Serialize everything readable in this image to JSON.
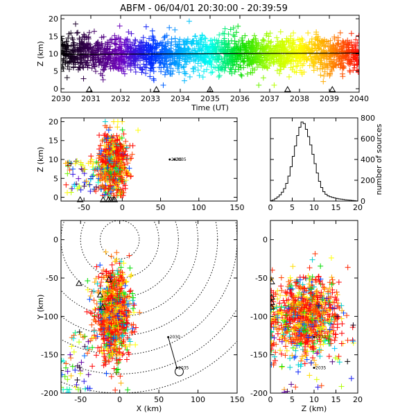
{
  "title": "ABFM - 06/04/01 20:30:00 - 20:39:59",
  "chart_data": [
    {
      "id": "time-height",
      "type": "scatter",
      "xlabel": "Time (UT)",
      "ylabel": "Z (km)",
      "xlim": [
        2030,
        2040
      ],
      "ylim": [
        -1,
        21
      ],
      "xticks": [
        2030,
        2031,
        2032,
        2033,
        2034,
        2035,
        2036,
        2037,
        2038,
        2039,
        2040
      ],
      "yticks": [
        0,
        5,
        10,
        15,
        20
      ],
      "color_scale": "time-rainbow (black → purple → blue → cyan → green → yellow → red)",
      "source_cloud": {
        "x_range": [
          2030,
          2040
        ],
        "z_center": 10,
        "z_spread": 4.5,
        "z_min": 1,
        "z_max": 20
      },
      "trend_line": [
        [
          2030,
          9.8
        ],
        [
          2035,
          10.0
        ],
        [
          2040,
          10.2
        ]
      ],
      "station_markers_x": [
        2030.95,
        2033.2,
        2035.0,
        2037.6,
        2039.1
      ]
    },
    {
      "id": "x-z",
      "type": "scatter",
      "xlabel": "",
      "ylabel": "Z (km)",
      "xlim": [
        -80,
        150
      ],
      "ylim": [
        -1,
        21
      ],
      "xticks": [
        -50,
        0,
        50,
        100,
        150
      ],
      "yticks": [
        0,
        5,
        10,
        15,
        20
      ],
      "source_cloud": {
        "x_center": -12,
        "x_spread": 9,
        "z_center": 9,
        "z_spread": 4
      },
      "annotations": [
        {
          "text": "2030",
          "x": 62,
          "z": 10
        },
        {
          "text": "2035",
          "x": 68,
          "z": 10
        }
      ],
      "station_markers_x": [
        -55,
        -25,
        -18,
        -15,
        -12,
        -10
      ]
    },
    {
      "id": "histogram",
      "type": "bar",
      "xlabel": "",
      "ylabel": "number of sources",
      "xlim": [
        0,
        20
      ],
      "ylim": [
        0,
        800
      ],
      "xticks": [
        0,
        5,
        10,
        15,
        20
      ],
      "yticks": [
        0,
        200,
        400,
        600,
        800
      ],
      "bin_width": 0.5,
      "bin_starts": [
        0,
        0.5,
        1,
        1.5,
        2,
        2.5,
        3,
        3.5,
        4,
        4.5,
        5,
        5.5,
        6,
        6.5,
        7,
        7.5,
        8,
        8.5,
        9,
        9.5,
        10,
        10.5,
        11,
        11.5,
        12,
        12.5,
        13,
        13.5,
        14,
        14.5,
        15,
        15.5,
        16,
        16.5,
        17,
        17.5,
        18,
        18.5,
        19,
        19.5
      ],
      "counts": [
        5,
        12,
        25,
        40,
        60,
        85,
        120,
        170,
        240,
        330,
        430,
        530,
        630,
        710,
        760,
        745,
        690,
        620,
        540,
        450,
        360,
        270,
        190,
        130,
        90,
        65,
        50,
        42,
        35,
        30,
        25,
        21,
        18,
        15,
        12,
        10,
        8,
        6,
        4,
        2
      ]
    },
    {
      "id": "x-y",
      "type": "scatter",
      "xlabel": "X (km)",
      "ylabel": "Y (km)",
      "xlim": [
        -75,
        150
      ],
      "ylim": [
        -200,
        25
      ],
      "xticks": [
        -50,
        0,
        50,
        100,
        150
      ],
      "yticks": [
        -200,
        -150,
        -100,
        -50,
        0
      ],
      "source_cloud": {
        "x_center": -8,
        "x_spread": 11,
        "y_center": -100,
        "y_spread": 28
      },
      "range_rings_center": [
        0,
        0
      ],
      "range_rings_radii": [
        25,
        50,
        75,
        100,
        125,
        150,
        175,
        200
      ],
      "track": [
        [
          62,
          -127
        ],
        [
          73,
          -167
        ]
      ],
      "track_labels": [
        {
          "text": "2030",
          "x": 62,
          "y": -127
        },
        {
          "text": "2035",
          "x": 73,
          "y": -167
        }
      ],
      "station_markers": [
        [
          -52,
          -57
        ],
        [
          -25,
          -72
        ],
        [
          -22,
          -88
        ],
        [
          -14,
          -52
        ]
      ]
    },
    {
      "id": "z-y",
      "type": "scatter",
      "xlabel": "Z (km)",
      "ylabel": "",
      "xlim": [
        0,
        20
      ],
      "ylim": [
        -200,
        25
      ],
      "xticks": [
        0,
        5,
        10,
        15,
        20
      ],
      "yticks": [
        -200,
        -150,
        -100,
        -50,
        0
      ],
      "source_cloud": {
        "z_center": 8,
        "z_spread": 4,
        "y_center": -100,
        "y_spread": 25
      },
      "track_labels": [
        {
          "text": "2030",
          "z": 10,
          "y": -127
        },
        {
          "text": "2035",
          "z": 10,
          "y": -167
        }
      ],
      "station_markers": [
        [
          0.3,
          -55
        ],
        [
          0.3,
          -75
        ],
        [
          0.3,
          -82
        ],
        [
          0.3,
          -88
        ]
      ]
    }
  ]
}
